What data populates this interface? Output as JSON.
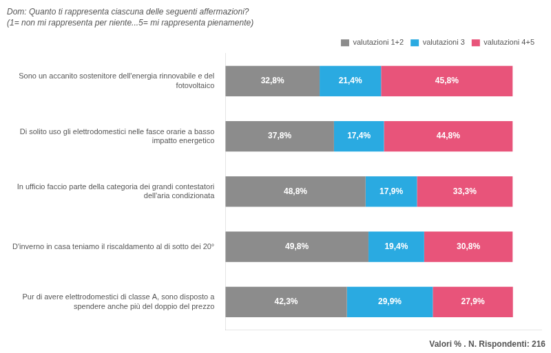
{
  "chart_data": {
    "type": "bar",
    "orientation": "horizontal",
    "stacked": true,
    "title": "Dom: Quanto ti rappresenta ciascuna delle seguenti affermazioni?",
    "subtitle": "(1= non mi rappresenta per niente...5= mi rappresenta pienamente)",
    "annotations": [
      "Valori % . N. Rispondenti: 216"
    ],
    "categories": [
      "Sono un accanito sostenitore dell'energia rinnovabile e del\nfotovoltaico",
      "Di solito uso gli elettrodomestici nelle fasce orarie a basso\nimpatto energetico",
      "In ufficio faccio parte della categoria dei grandi contestatori\ndell'aria condizionata",
      "D'inverno in casa teniamo il riscaldamento al di sotto dei 20°",
      "Pur di avere elettrodomestici di classe A, sono disposto a\nspendere anche più del doppio del prezzo"
    ],
    "series": [
      {
        "name": "valutazioni 1+2",
        "color": "#8c8c8c",
        "values": [
          32.8,
          37.8,
          48.8,
          49.8,
          42.3
        ],
        "value_labels": [
          "32,8%",
          "37,8%",
          "48,8%",
          "49,8%",
          "42,3%"
        ]
      },
      {
        "name": "valutazioni 3",
        "color": "#2aaae1",
        "values": [
          21.4,
          17.4,
          17.9,
          19.4,
          29.9
        ],
        "value_labels": [
          "21,4%",
          "17,4%",
          "17,9%",
          "19,4%",
          "29,9%"
        ]
      },
      {
        "name": "valutazioni 4+5",
        "color": "#e8547a",
        "values": [
          45.8,
          44.8,
          33.3,
          30.8,
          27.9
        ],
        "value_labels": [
          "45,8%",
          "44,8%",
          "33,3%",
          "30,8%",
          "27,9%"
        ]
      }
    ],
    "xlim": [
      0,
      110
    ],
    "data_labels": true,
    "tick_labels": "y",
    "grid": false,
    "legend": "upper right"
  }
}
